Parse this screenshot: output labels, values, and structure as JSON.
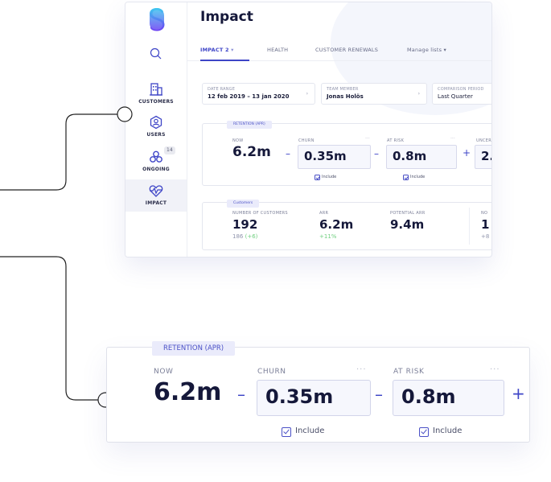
{
  "app": {
    "title": "Impact",
    "colors": {
      "accent": "#3e45c7",
      "tag_bg": "#eaebfb",
      "positive": "#6fcf7f",
      "logo_top": "#3ec9f0",
      "logo_bottom": "#6b3ff2"
    }
  },
  "sidebar": {
    "items": [
      {
        "label": "CUSTOMERS",
        "icon": "building-icon"
      },
      {
        "label": "USERS",
        "icon": "user-hexagon-icon"
      },
      {
        "label": "ONGOING",
        "icon": "network-icon",
        "badge": "14"
      },
      {
        "label": "IMPACT",
        "icon": "heart-pulse-icon",
        "active": true
      }
    ]
  },
  "tabs": [
    {
      "label": "IMPACT 2",
      "caret": "▾",
      "active": true
    },
    {
      "label": "HEALTH"
    },
    {
      "label": "CUSTOMER RENEWALS"
    },
    {
      "label": "Manage lists",
      "caret": "▾"
    }
  ],
  "filters": {
    "date_range": {
      "caption": "DATE RANGE",
      "value": "12 feb 2019 – 13 jan 2020",
      "chevron": "›"
    },
    "team_member": {
      "caption": "TEAM MEMBER",
      "value": "Jonas Holös",
      "chevron": "›"
    },
    "comparison": {
      "caption": "COMPARISON PERIOD",
      "value": "Last Quarter"
    }
  },
  "retention": {
    "tag": "RETENTION (APR)",
    "now_label": "NOW",
    "now_value": "6.2m",
    "minus": "–",
    "plus": "+",
    "dots": "···",
    "churn": {
      "label": "CHURN",
      "value": "0.35m",
      "include": "Include"
    },
    "at_risk": {
      "label": "AT RISK",
      "value": "0.8m",
      "include": "Include"
    },
    "uncertain": {
      "label": "UNCER",
      "value": "2."
    }
  },
  "customers_card": {
    "tag": "Customers",
    "number": {
      "label": "NUMBER OF CUSTOMERS",
      "value": "192",
      "sub": "186",
      "delta": "(+6)"
    },
    "arr": {
      "label": "ARR",
      "value": "6.2m",
      "delta": "+11%"
    },
    "potential": {
      "label": "POTENTIAL ARR",
      "value": "9.4m"
    },
    "no": {
      "label": "NO",
      "value": "1",
      "sub": "+8"
    }
  }
}
